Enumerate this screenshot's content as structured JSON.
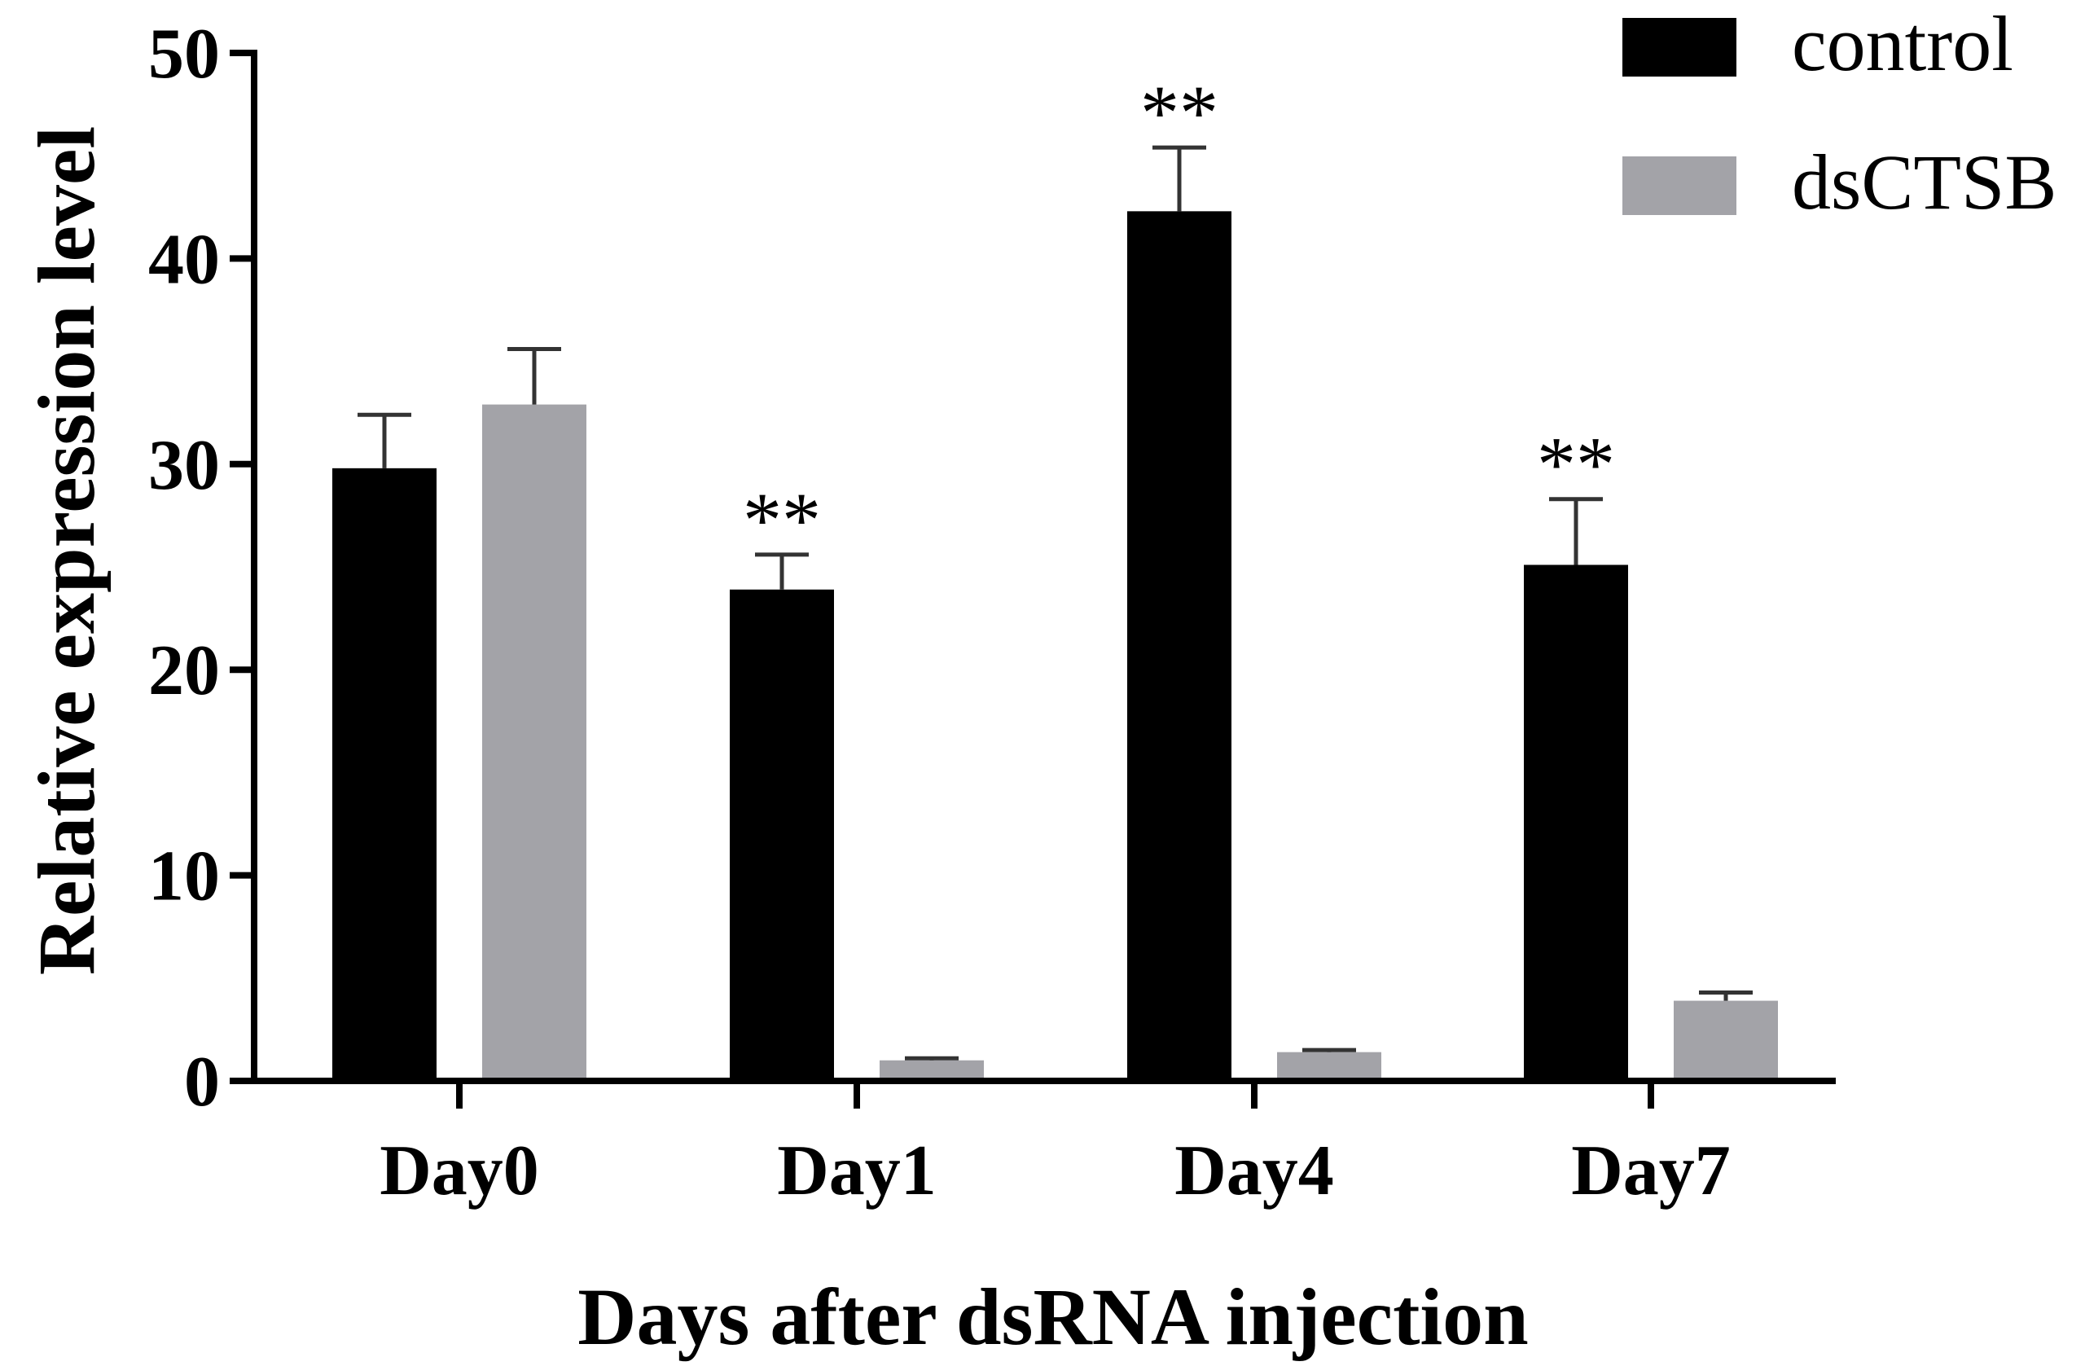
{
  "chart_data": {
    "type": "bar",
    "title": "",
    "xlabel": "Days after dsRNA injection",
    "ylabel": "Relative expression level",
    "categories": [
      "Day0",
      "Day1",
      "Day4",
      "Day7"
    ],
    "ylim": [
      0,
      50
    ],
    "yticks": [
      0,
      10,
      20,
      30,
      40,
      50
    ],
    "legend_position": "top-right",
    "series": [
      {
        "name": "control",
        "color": "#000000",
        "error_color": "#333333",
        "values": [
          29.8,
          23.9,
          42.3,
          25.1
        ],
        "errors": [
          2.6,
          1.7,
          3.1,
          3.2
        ]
      },
      {
        "name": "dsCTSB",
        "color": "#a3a3a8",
        "error_color": "#333333",
        "values": [
          32.9,
          1.0,
          1.4,
          3.9
        ],
        "errors": [
          2.7,
          0.1,
          0.1,
          0.4
        ]
      }
    ],
    "annotations": [
      {
        "category": "Day1",
        "series": "control",
        "text": "**"
      },
      {
        "category": "Day4",
        "series": "control",
        "text": "**"
      },
      {
        "category": "Day7",
        "series": "control",
        "text": "**"
      }
    ]
  }
}
